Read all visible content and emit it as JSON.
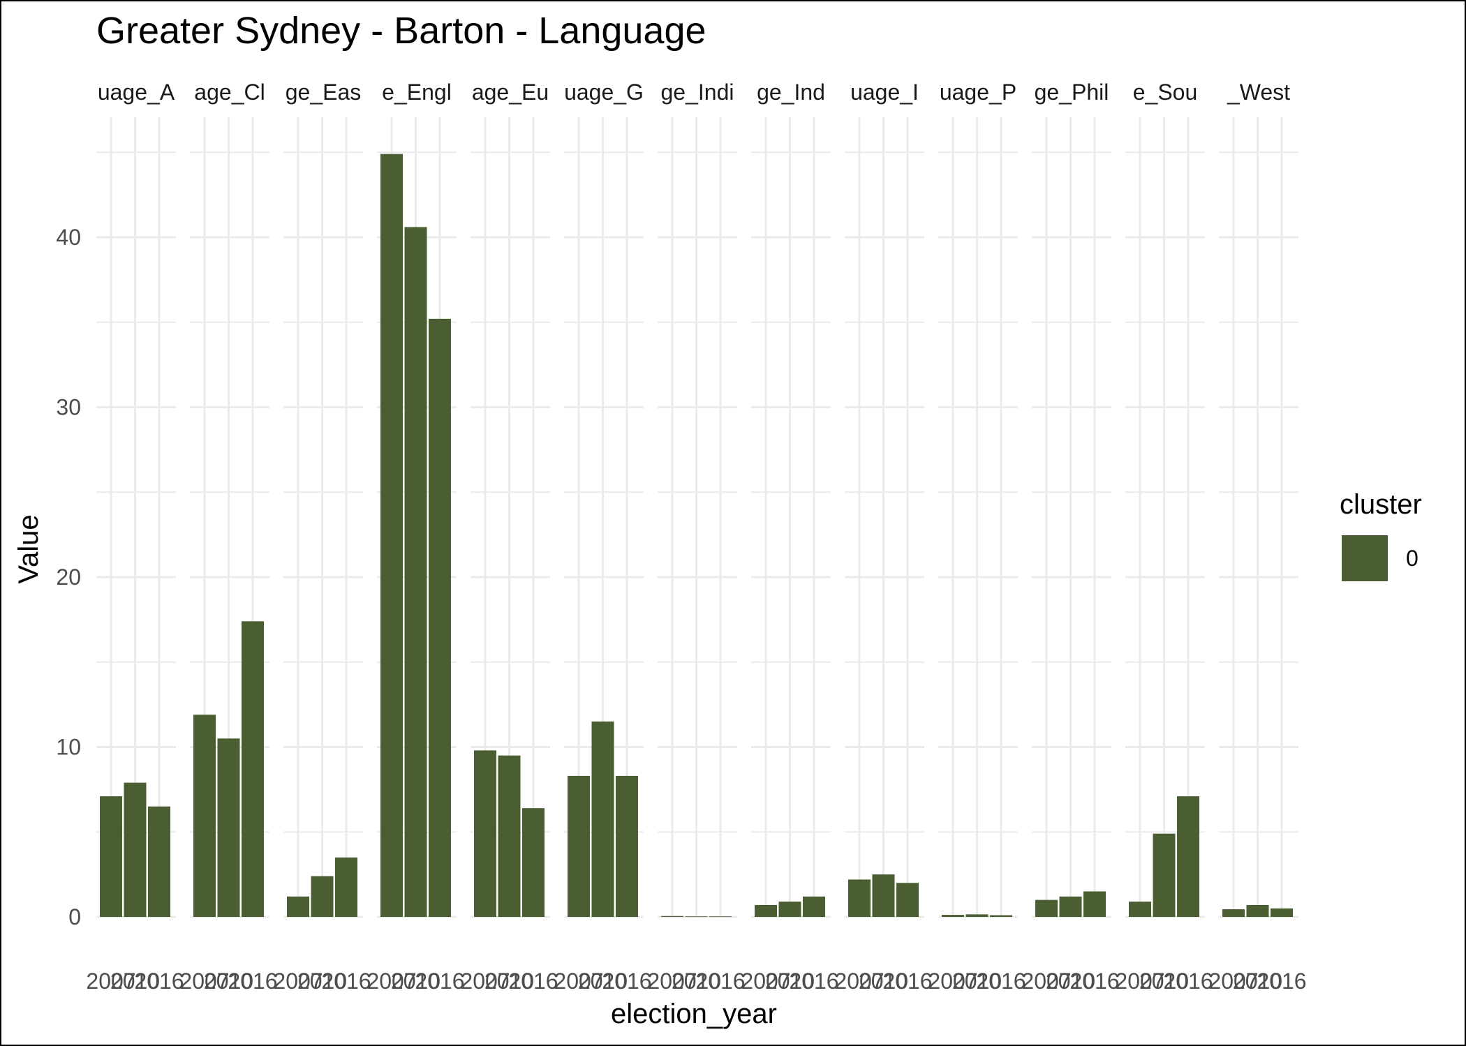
{
  "chart_data": {
    "type": "bar",
    "title": "Greater Sydney - Barton - Language",
    "xlabel": "election_year",
    "ylabel": "Value",
    "ylim": [
      0,
      47
    ],
    "yticks": [
      0,
      10,
      20,
      30,
      40
    ],
    "grid": true,
    "categories": [
      "2007",
      "2010",
      "2016"
    ],
    "facets": [
      {
        "strip": "uage_A",
        "values": [
          7.1,
          7.9,
          6.5
        ]
      },
      {
        "strip": "age_Cl",
        "values": [
          11.9,
          10.5,
          17.4
        ]
      },
      {
        "strip": "ge_Eas",
        "values": [
          1.2,
          2.4,
          3.5
        ]
      },
      {
        "strip": "e_Engl",
        "values": [
          44.9,
          40.6,
          35.2
        ]
      },
      {
        "strip": "age_Eu",
        "values": [
          9.8,
          9.5,
          6.4
        ]
      },
      {
        "strip": "uage_G",
        "values": [
          8.3,
          11.5,
          8.3
        ]
      },
      {
        "strip": "ge_Indi",
        "values": [
          0.05,
          0.03,
          0.03
        ]
      },
      {
        "strip": "ge_Ind",
        "values": [
          0.7,
          0.9,
          1.2
        ]
      },
      {
        "strip": "uage_I",
        "values": [
          2.2,
          2.5,
          2.0
        ]
      },
      {
        "strip": "uage_P",
        "values": [
          0.12,
          0.15,
          0.1
        ]
      },
      {
        "strip": "ge_Phil",
        "values": [
          1.0,
          1.2,
          1.5
        ]
      },
      {
        "strip": "e_Sou",
        "values": [
          0.9,
          4.9,
          7.1
        ]
      },
      {
        "strip": "_West",
        "values": [
          0.45,
          0.7,
          0.5
        ]
      }
    ],
    "legend": {
      "title": "cluster",
      "items": [
        {
          "label": "0",
          "color": "#4a5e32"
        }
      ],
      "position": "right"
    },
    "bar_color": "#4a5e32",
    "grid_color": "#ebebeb"
  }
}
